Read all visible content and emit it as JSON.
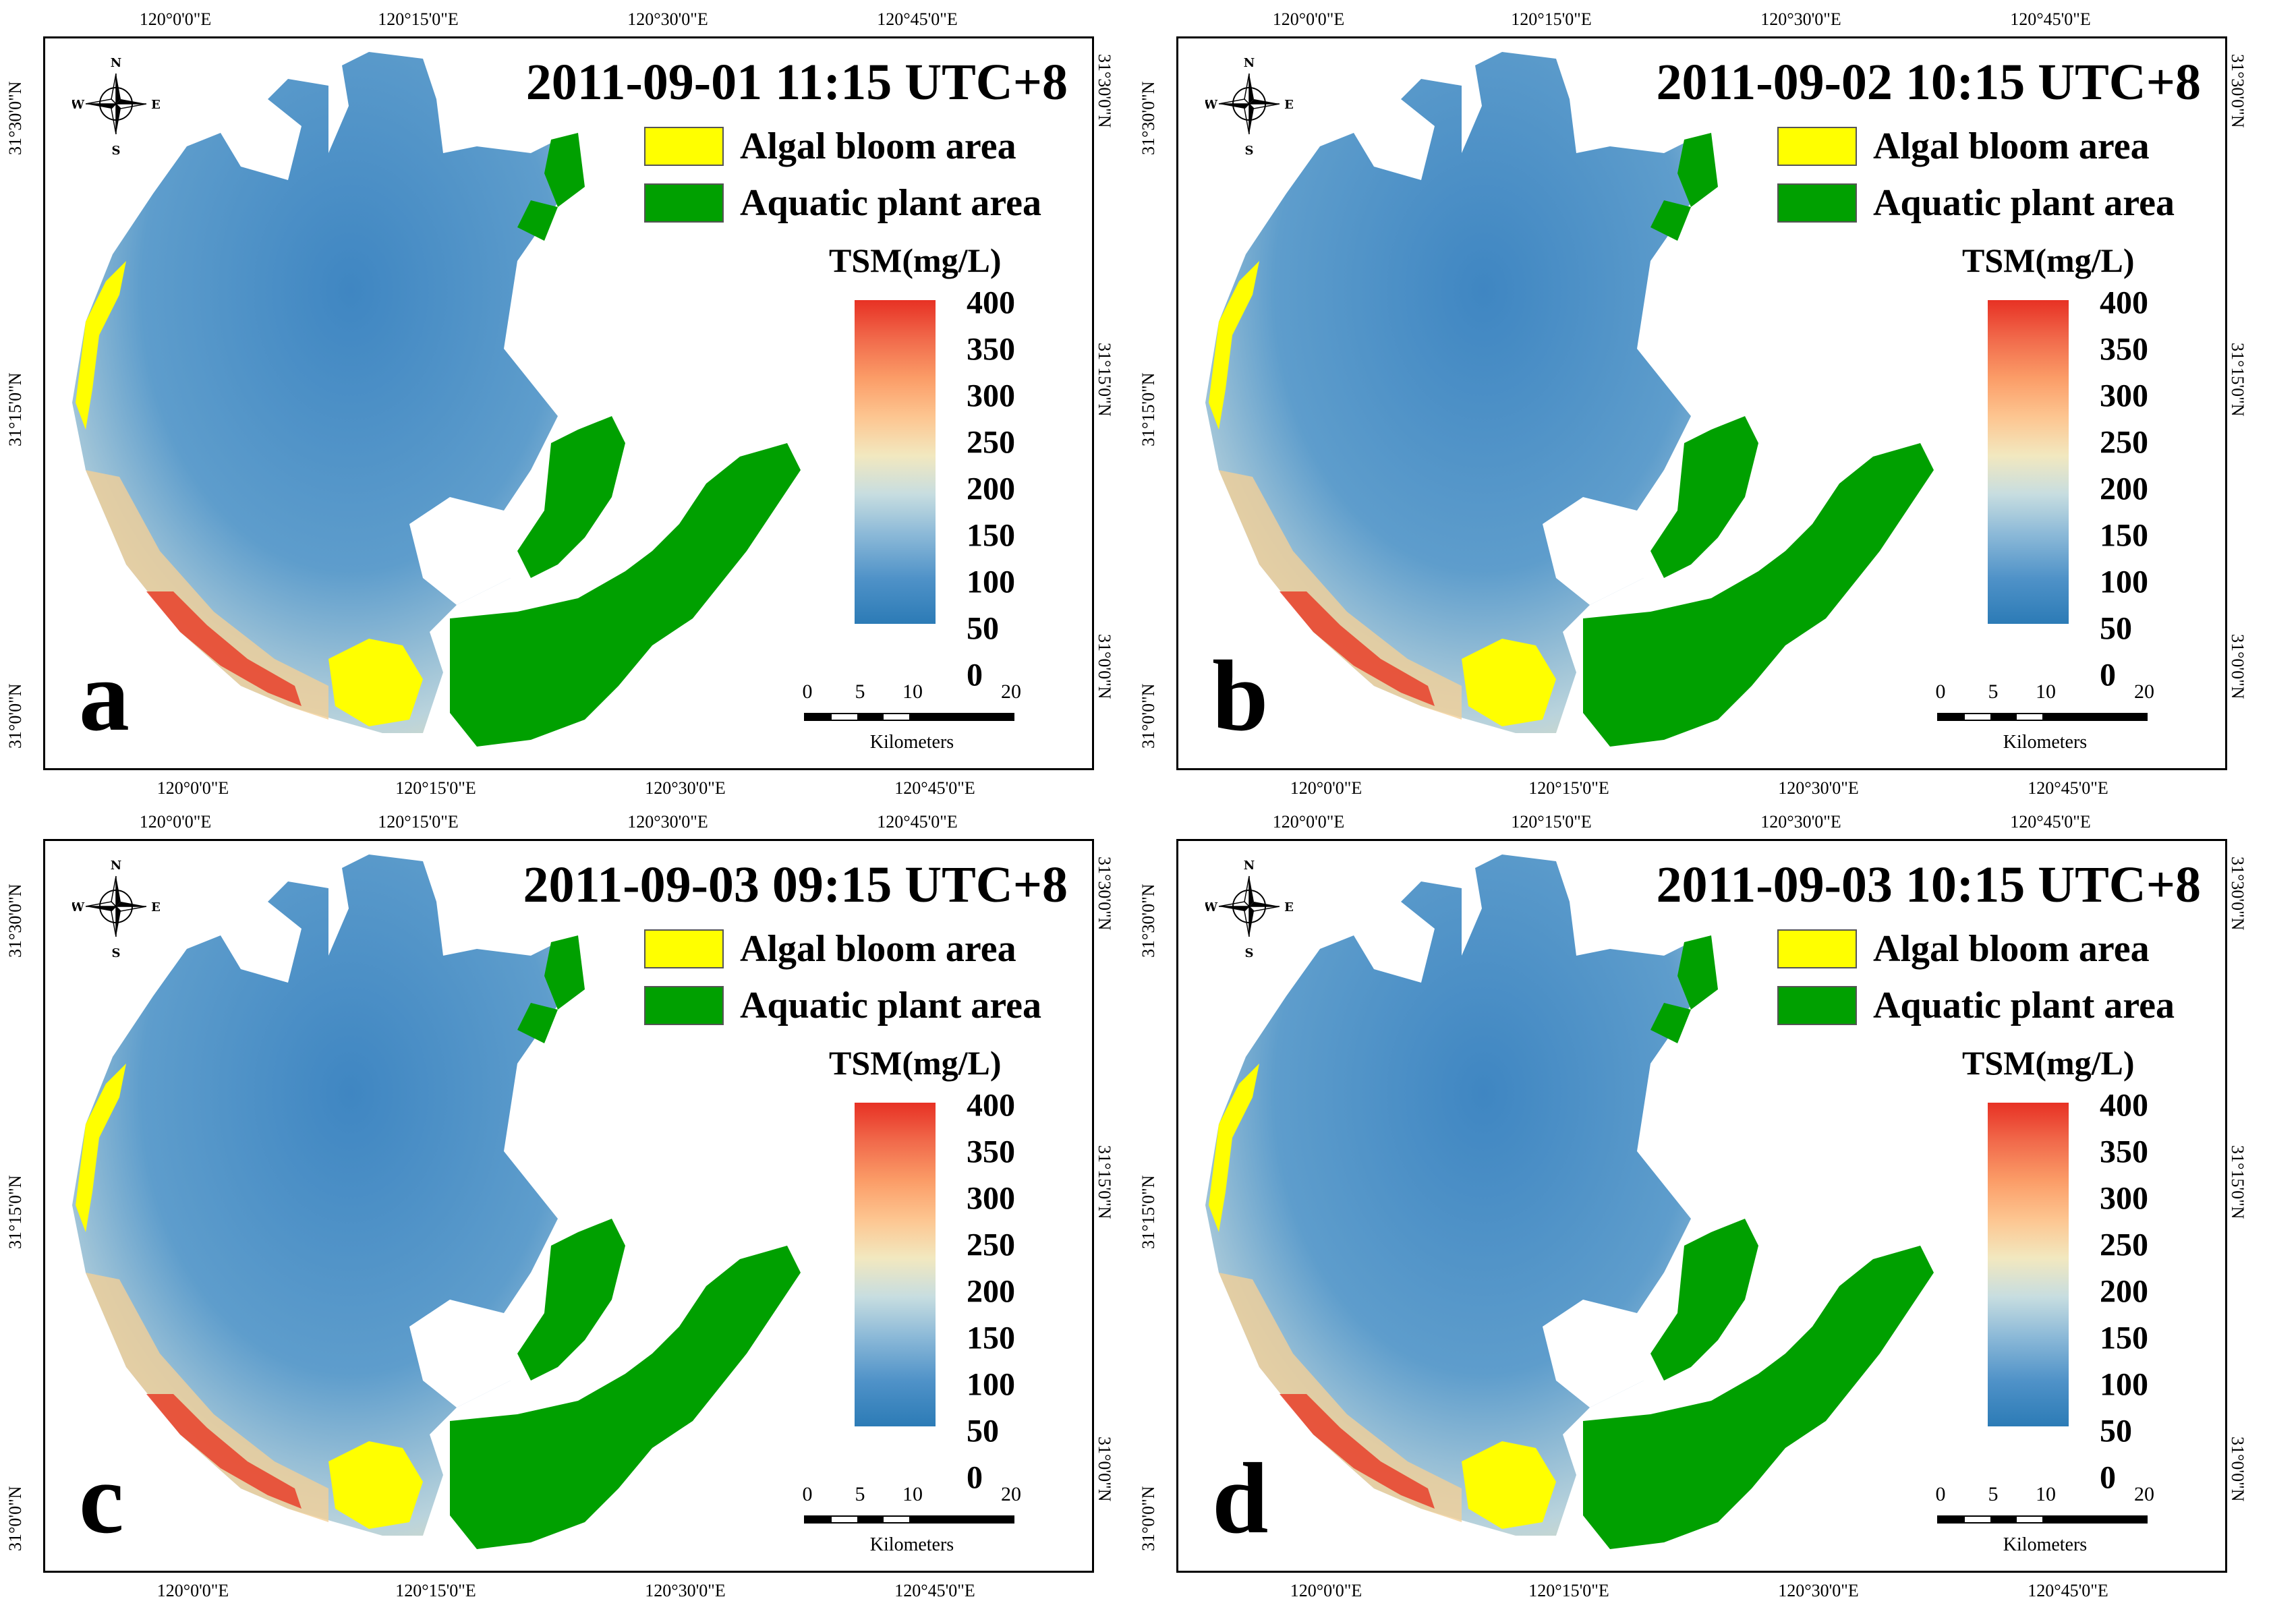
{
  "figure": {
    "lon_ticks": [
      "120°0'0\"E",
      "120°15'0\"E",
      "120°30'0\"E",
      "120°45'0\"E"
    ],
    "lat_ticks": [
      "31°30'0\"N",
      "31°15'0\"N",
      "31°0'0\"N"
    ],
    "legend": {
      "algal_label": "Algal bloom area",
      "plant_label": "Aquatic plant area",
      "algal_color": "#ffff00",
      "plant_color": "#00a000"
    },
    "colorbar": {
      "title": "TSM(mg/L)",
      "labels": [
        "400",
        "350",
        "300",
        "250",
        "200",
        "150",
        "100",
        "50",
        "0"
      ],
      "low_color": "#2c7bb6",
      "mid_color": "#f2e8bf",
      "high_color": "#e73124"
    },
    "scale": {
      "ticks": [
        "0",
        "5",
        "10",
        "20"
      ],
      "unit": "Kilometers"
    },
    "compass": {
      "n": "N",
      "s": "S",
      "e": "E",
      "w": "W"
    }
  },
  "panels": [
    {
      "letter": "a",
      "title": "2011-09-01 11:15 UTC+8"
    },
    {
      "letter": "b",
      "title": "2011-09-02 10:15 UTC+8"
    },
    {
      "letter": "c",
      "title": "2011-09-03 09:15 UTC+8"
    },
    {
      "letter": "d",
      "title": "2011-09-03 10:15 UTC+8"
    }
  ]
}
